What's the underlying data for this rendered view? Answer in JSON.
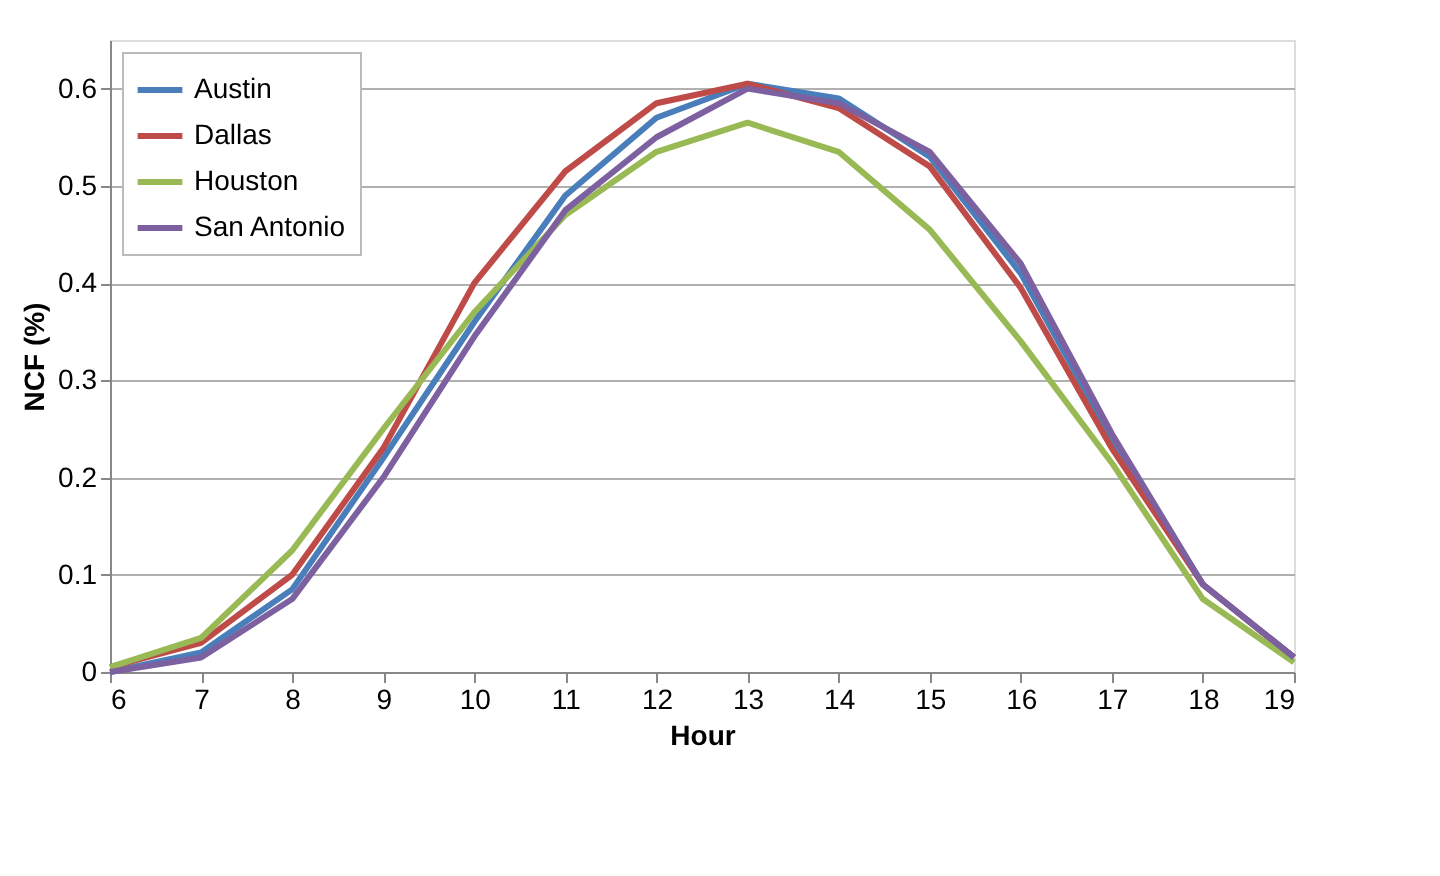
{
  "chart_data": {
    "type": "line",
    "xlabel": "Hour",
    "ylabel": "NCF (%)",
    "x": [
      6,
      7,
      8,
      9,
      10,
      11,
      12,
      13,
      14,
      15,
      16,
      17,
      18,
      19
    ],
    "xlim": [
      6,
      19
    ],
    "xticks": [
      6,
      7,
      8,
      9,
      10,
      11,
      12,
      13,
      14,
      15,
      16,
      17,
      18,
      19
    ],
    "ylim": [
      0,
      0.65
    ],
    "yticks": [
      0,
      0.1,
      0.2,
      0.3,
      0.4,
      0.5,
      0.6
    ],
    "grid": "y",
    "legend": "top left",
    "marker": "none",
    "line_style": "solid",
    "series": [
      {
        "name": "Austin",
        "color": "#4a7ebb",
        "values": [
          0,
          0.02,
          0.085,
          0.22,
          0.36,
          0.49,
          0.57,
          0.605,
          0.59,
          0.53,
          0.41,
          0.24,
          0.09,
          0.015
        ]
      },
      {
        "name": "Dallas",
        "color": "#be4b48",
        "values": [
          0.005,
          0.03,
          0.1,
          0.23,
          0.4,
          0.515,
          0.585,
          0.605,
          0.58,
          0.52,
          0.395,
          0.23,
          0.09,
          0.015
        ]
      },
      {
        "name": "Houston",
        "color": "#98b954",
        "values": [
          0.005,
          0.035,
          0.125,
          0.25,
          0.37,
          0.47,
          0.535,
          0.565,
          0.535,
          0.455,
          0.34,
          0.215,
          0.075,
          0.01
        ]
      },
      {
        "name": "San Antonio",
        "color": "#7d60a0",
        "values": [
          0,
          0.015,
          0.075,
          0.2,
          0.345,
          0.475,
          0.55,
          0.6,
          0.585,
          0.535,
          0.42,
          0.245,
          0.09,
          0.015
        ]
      }
    ]
  }
}
